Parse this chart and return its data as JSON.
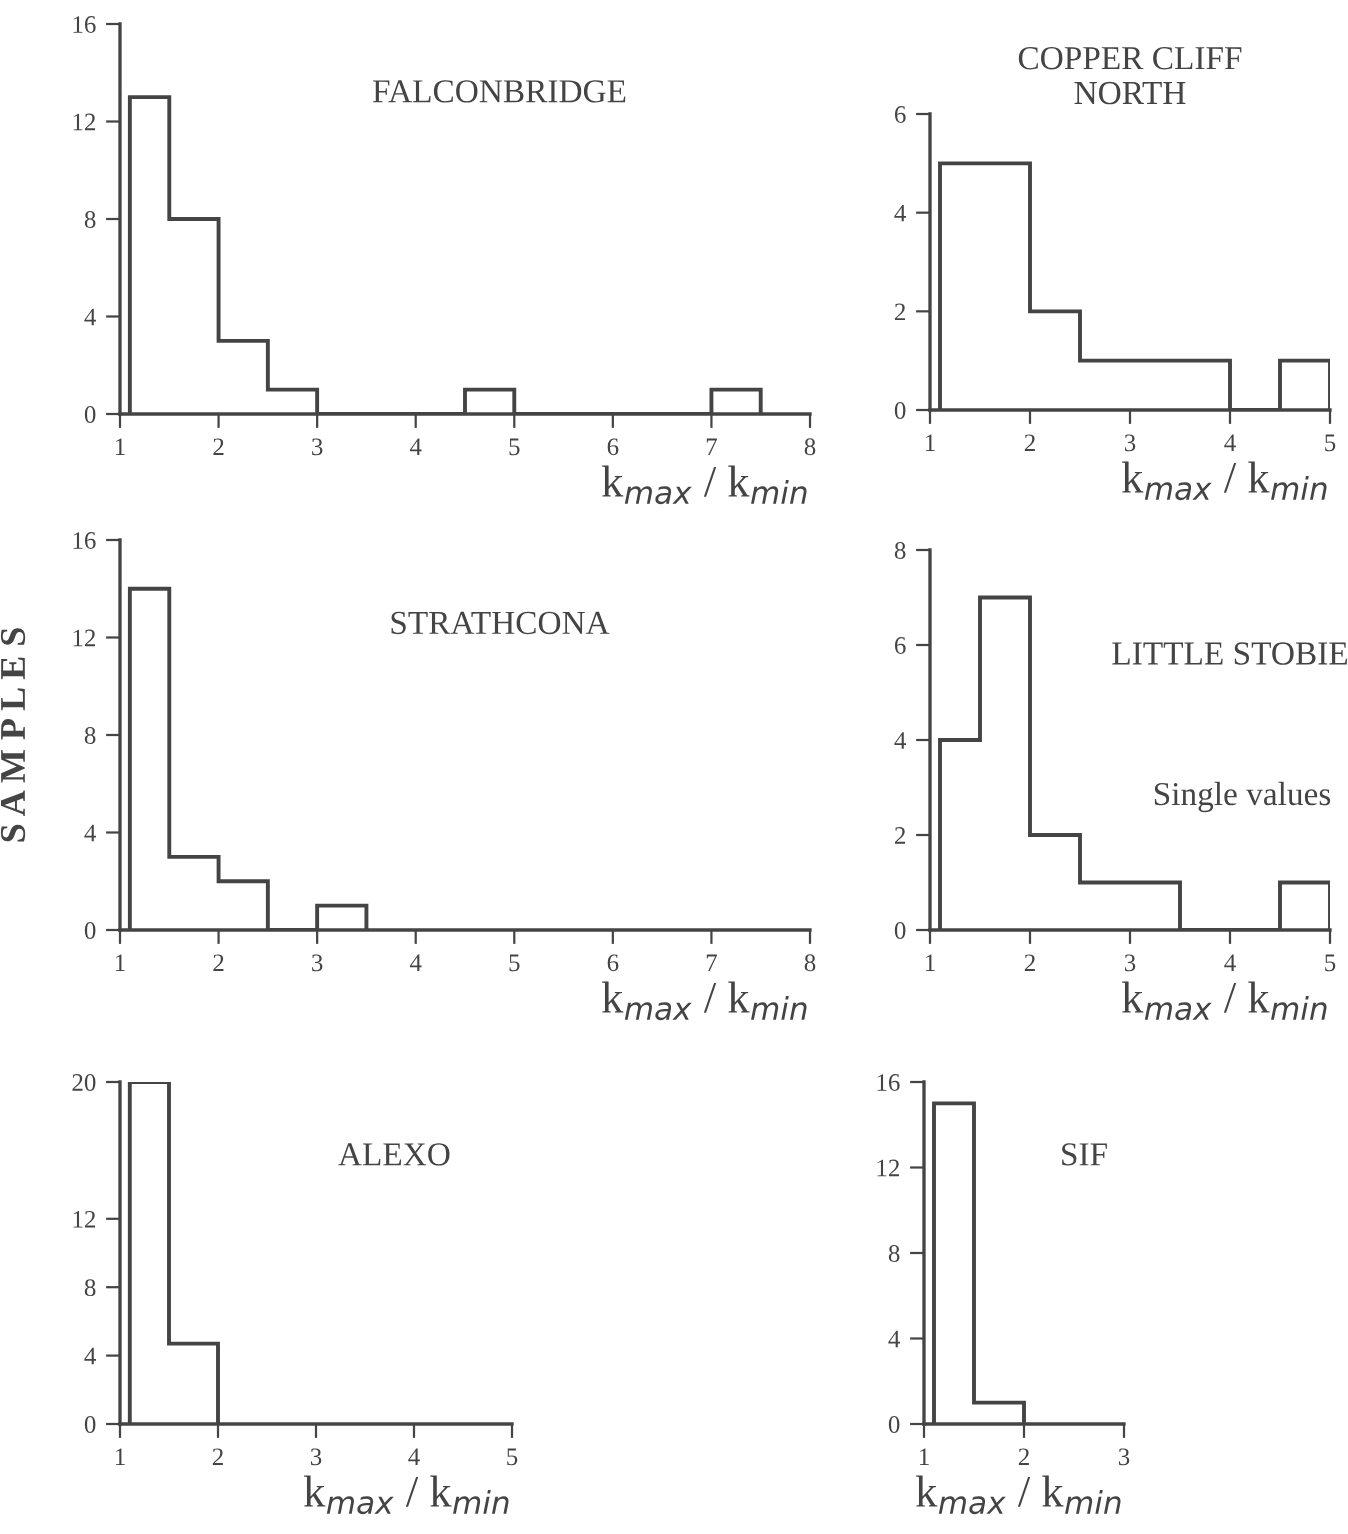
{
  "chart_data": [
    {
      "type": "histogram",
      "title": "FALCONBRIDGE",
      "xlabel": "k$_{max}$ / k$_{min}$",
      "color": "#444444",
      "bins": [
        1.1,
        1.5,
        2,
        2.5,
        3,
        4.5,
        5,
        7,
        7.5
      ],
      "values": [
        13,
        8,
        3,
        1,
        0,
        1,
        0,
        1
      ],
      "xlim": [
        1,
        8
      ],
      "xticks": [
        1,
        2,
        3,
        4,
        5,
        6,
        7,
        8
      ],
      "ylim": [
        0,
        16
      ],
      "yticks": [
        0,
        4,
        8,
        12,
        16
      ]
    },
    {
      "type": "histogram",
      "title": "COPPER CLIFF\nNORTH",
      "xlabel": "k$_{max}$ / k$_{min}$",
      "color": "#444444",
      "bins": [
        1.1,
        2,
        2.5,
        4,
        4.5,
        5
      ],
      "values": [
        5,
        2,
        1,
        0,
        1
      ],
      "xlim": [
        1,
        5
      ],
      "xticks": [
        1,
        2,
        3,
        4,
        5
      ],
      "ylim": [
        0,
        6
      ],
      "yticks": [
        0,
        2,
        4,
        6
      ]
    },
    {
      "type": "histogram",
      "title": "STRATHCONA",
      "xlabel": "k$_{max}$ / k$_{min}$",
      "ylabel": "S A M P L E S",
      "color": "#444444",
      "bins": [
        1.1,
        1.5,
        2,
        2.5,
        3,
        3.5
      ],
      "values": [
        14,
        3,
        2,
        0,
        1
      ],
      "xlim": [
        1,
        8
      ],
      "xticks": [
        1,
        2,
        3,
        4,
        5,
        6,
        7,
        8
      ],
      "ylim": [
        0,
        16
      ],
      "yticks": [
        0,
        4,
        8,
        12,
        16
      ]
    },
    {
      "type": "histogram",
      "title": "LITTLE STOBIE",
      "xlabel": "k$_{max}$ / k$_{min}$",
      "annotations": [
        "Single values"
      ],
      "color": "#444444",
      "bins": [
        1.1,
        1.5,
        2,
        2.5,
        3.5,
        4.5,
        5
      ],
      "values": [
        4,
        7,
        2,
        1,
        0,
        1
      ],
      "xlim": [
        1,
        5
      ],
      "xticks": [
        1,
        2,
        3,
        4,
        5
      ],
      "ylim": [
        0,
        8
      ],
      "yticks": [
        0,
        2,
        4,
        6,
        8
      ]
    },
    {
      "type": "histogram",
      "title": "ALEXO",
      "xlabel": "k$_{max}$ / k$_{min}$",
      "color": "#444444",
      "bins": [
        1.1,
        1.5,
        2
      ],
      "values": [
        20,
        4.7
      ],
      "xlim": [
        1,
        5
      ],
      "xticks": [
        1,
        2,
        3,
        4,
        5
      ],
      "ylim": [
        0,
        20
      ],
      "yticks": [
        0,
        4,
        8,
        12,
        20
      ]
    },
    {
      "type": "histogram",
      "title": "SIF",
      "xlabel": "k$_{max}$ / k$_{min}$",
      "color": "#444444",
      "bins": [
        1.1,
        1.5,
        2
      ],
      "values": [
        15,
        1
      ],
      "xlim": [
        1,
        3
      ],
      "xticks": [
        1,
        2,
        3
      ],
      "ylim": [
        0,
        16
      ],
      "yticks": [
        0,
        4,
        8,
        12,
        16
      ]
    }
  ]
}
